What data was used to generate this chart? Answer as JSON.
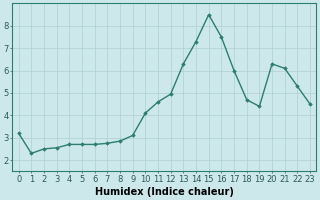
{
  "x": [
    0,
    1,
    2,
    3,
    4,
    5,
    6,
    7,
    8,
    9,
    10,
    11,
    12,
    13,
    14,
    15,
    16,
    17,
    18,
    19,
    20,
    21,
    22,
    23
  ],
  "y": [
    3.2,
    2.3,
    2.5,
    2.55,
    2.7,
    2.7,
    2.7,
    2.75,
    2.85,
    3.1,
    4.1,
    4.6,
    4.95,
    6.3,
    7.3,
    8.5,
    7.5,
    6.0,
    4.7,
    4.4,
    6.3,
    6.1,
    5.3,
    4.5
  ],
  "xlabel": "Humidex (Indice chaleur)",
  "ylim": [
    1.5,
    9.0
  ],
  "xlim": [
    -0.5,
    23.5
  ],
  "yticks": [
    2,
    3,
    4,
    5,
    6,
    7,
    8
  ],
  "xticks": [
    0,
    1,
    2,
    3,
    4,
    5,
    6,
    7,
    8,
    9,
    10,
    11,
    12,
    13,
    14,
    15,
    16,
    17,
    18,
    19,
    20,
    21,
    22,
    23
  ],
  "line_color": "#2e7d6e",
  "marker": "D",
  "marker_size": 1.8,
  "bg_color": "#cce8ea",
  "grid_color": "#aecfd4",
  "line_width": 1.0,
  "tick_fontsize": 6,
  "xlabel_fontsize": 7
}
